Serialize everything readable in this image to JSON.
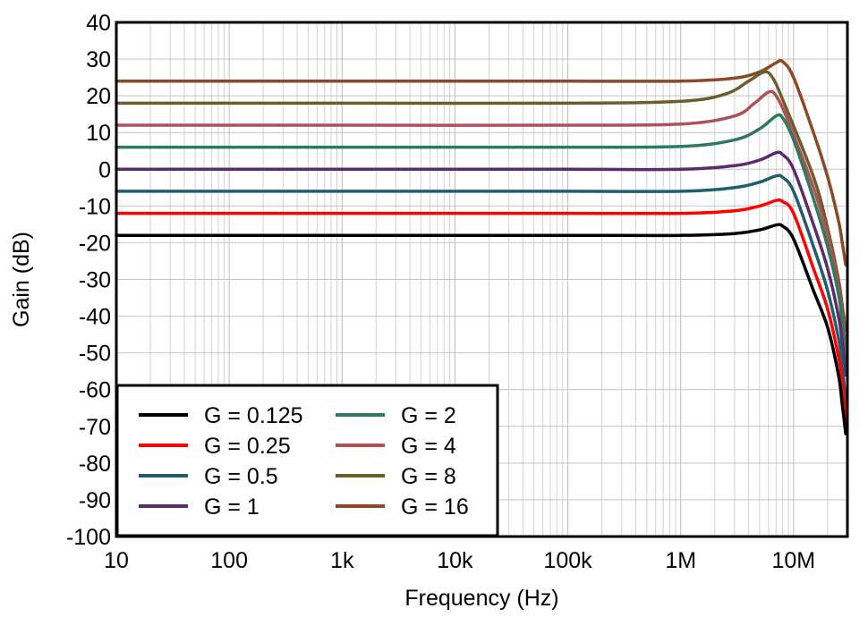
{
  "chart_data": {
    "type": "line",
    "title": "",
    "xlabel": "Frequency (Hz)",
    "ylabel": "Gain (dB)",
    "xscale": "log",
    "xlim": [
      10,
      30000000
    ],
    "ylim": [
      -100,
      40
    ],
    "grid": true,
    "x_ticks": [
      {
        "value": 10,
        "label": "10"
      },
      {
        "value": 100,
        "label": "100"
      },
      {
        "value": 1000,
        "label": "1k"
      },
      {
        "value": 10000,
        "label": "10k"
      },
      {
        "value": 100000,
        "label": "100k"
      },
      {
        "value": 1000000,
        "label": "1M"
      },
      {
        "value": 10000000,
        "label": "10M"
      }
    ],
    "y_ticks": [
      40,
      30,
      20,
      10,
      0,
      -10,
      -20,
      -30,
      -40,
      -50,
      -60,
      -70,
      -80,
      -90,
      -100
    ],
    "y_tick_labels": [
      "40",
      "30",
      "20",
      "10",
      "0",
      "-10",
      "-20",
      "-30",
      "-40",
      "-50",
      "-60",
      "-70",
      "-80",
      "-90",
      "-100"
    ],
    "legend_position": "bottom-left",
    "series": [
      {
        "name": "G = 0.125",
        "color": "#000000",
        "x": [
          10,
          100,
          1000,
          100000,
          1000000,
          3000000,
          5000000,
          7000000,
          8000000,
          10000000,
          15000000,
          20000000,
          25000000,
          27000000,
          29000000
        ],
        "y": [
          -18,
          -18,
          -18,
          -18,
          -18,
          -17.5,
          -16.5,
          -15.2,
          -15.5,
          -19,
          -33,
          -43,
          -56,
          -64,
          -72
        ]
      },
      {
        "name": "G = 0.25",
        "color": "#ff0000",
        "x": [
          10,
          100,
          1000,
          100000,
          1000000,
          3000000,
          5000000,
          7000000,
          8000000,
          10000000,
          15000000,
          20000000,
          25000000,
          27000000,
          29000000
        ],
        "y": [
          -12,
          -12,
          -12,
          -12,
          -12,
          -11.3,
          -10,
          -8.5,
          -8.8,
          -12,
          -27,
          -38,
          -51,
          -58,
          -69
        ]
      },
      {
        "name": "G = 0.5",
        "color": "#1e5f6e",
        "x": [
          10,
          100,
          1000,
          100000,
          1000000,
          3000000,
          5000000,
          7000000,
          8000000,
          10000000,
          15000000,
          20000000,
          25000000,
          27000000,
          29000000
        ],
        "y": [
          -6,
          -6,
          -6,
          -6,
          -6,
          -5,
          -3.5,
          -1.8,
          -2.2,
          -6,
          -21,
          -33,
          -46,
          -53,
          -64
        ]
      },
      {
        "name": "G = 1",
        "color": "#5c2a6e",
        "x": [
          10,
          100,
          1000,
          100000,
          1000000,
          3000000,
          5000000,
          7000000,
          8000000,
          10000000,
          15000000,
          20000000,
          25000000,
          27000000,
          29000000
        ],
        "y": [
          0,
          0,
          0,
          0,
          0,
          1,
          2.5,
          4.5,
          4,
          0,
          -15,
          -27,
          -40,
          -47,
          -56
        ]
      },
      {
        "name": "G = 2",
        "color": "#2e7a5e",
        "x": [
          10,
          100,
          1000,
          100000,
          1000000,
          3000000,
          5000000,
          7000000,
          8000000,
          10000000,
          15000000,
          20000000,
          25000000,
          27000000,
          29000000
        ],
        "y": [
          6,
          6,
          6,
          6,
          6.2,
          8,
          11,
          14.5,
          14,
          8,
          -8,
          -21,
          -34,
          -42,
          -52
        ]
      },
      {
        "name": "G = 4",
        "color": "#b05058",
        "x": [
          10,
          100,
          1000,
          100000,
          1000000,
          3000000,
          4500000,
          6000000,
          7000000,
          9000000,
          15000000,
          20000000,
          25000000,
          27000000,
          29000000
        ],
        "y": [
          12,
          12,
          12,
          12,
          12.3,
          14.5,
          18,
          21,
          20,
          13,
          -5,
          -18,
          -32,
          -40,
          -48
        ]
      },
      {
        "name": "G = 8",
        "color": "#6b5e2a",
        "x": [
          10,
          100,
          1000,
          100000,
          1000000,
          2500000,
          4000000,
          5500000,
          6500000,
          8000000,
          15000000,
          20000000,
          25000000,
          27000000,
          29000000
        ],
        "y": [
          18,
          18,
          18,
          18,
          18.5,
          20.5,
          24,
          26.5,
          25,
          19,
          -2,
          -16,
          -30,
          -37,
          -44
        ]
      },
      {
        "name": "G = 16",
        "color": "#8b4a24",
        "x": [
          10,
          100,
          1000,
          100000,
          1000000,
          3000000,
          5000000,
          7000000,
          8000000,
          10000000,
          15000000,
          20000000,
          25000000,
          27000000,
          29000000
        ],
        "y": [
          24,
          24,
          24,
          24,
          24,
          24.8,
          26.5,
          29,
          29.3,
          25,
          10,
          -2,
          -14,
          -20,
          -26
        ]
      }
    ]
  }
}
